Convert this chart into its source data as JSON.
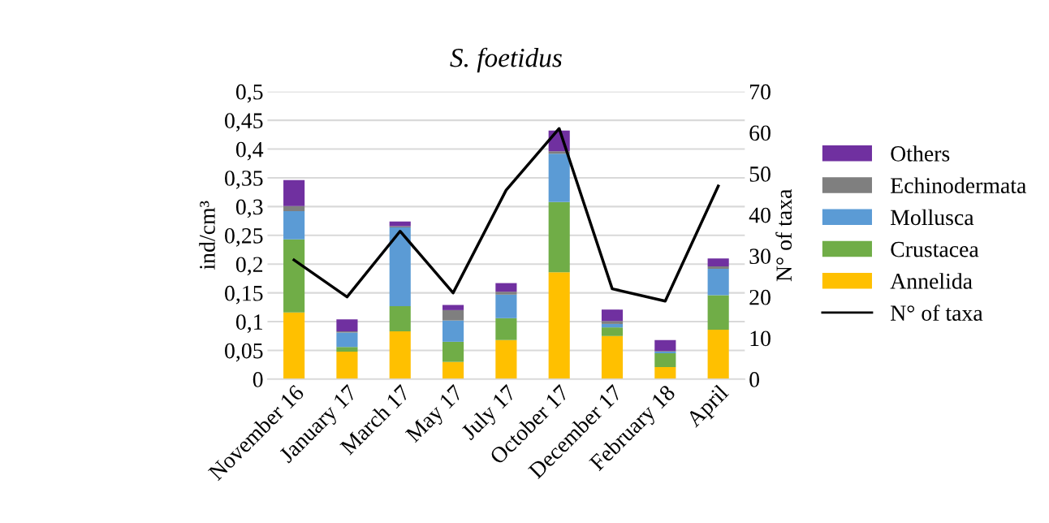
{
  "chart_data": {
    "type": "bar",
    "title": "S. foetidus",
    "ylabel": "ind/cm³",
    "y2label": "N° of taxa",
    "categories": [
      "November 16",
      "January 17",
      "March 17",
      "May 17",
      "July 17",
      "October 17",
      "December 17",
      "February 18",
      "April"
    ],
    "stacked": true,
    "grid": "y",
    "legend": "right",
    "ylim": [
      0,
      0.5
    ],
    "yticks": [
      {
        "value": 0,
        "label": "0"
      },
      {
        "value": 0.05,
        "label": "0,05"
      },
      {
        "value": 0.1,
        "label": "0,1"
      },
      {
        "value": 0.15,
        "label": "0,15"
      },
      {
        "value": 0.2,
        "label": "0,2"
      },
      {
        "value": 0.25,
        "label": "0,25"
      },
      {
        "value": 0.3,
        "label": "0,3"
      },
      {
        "value": 0.35,
        "label": "0,35"
      },
      {
        "value": 0.4,
        "label": "0,4"
      },
      {
        "value": 0.45,
        "label": "0,45"
      },
      {
        "value": 0.5,
        "label": "0,5"
      }
    ],
    "y2lim": [
      0,
      70
    ],
    "y2ticks": [
      0,
      10,
      20,
      30,
      40,
      50,
      60,
      70
    ],
    "series": [
      {
        "name": "Annelida",
        "color": "#ffc000",
        "values": [
          0.116,
          0.048,
          0.083,
          0.03,
          0.068,
          0.186,
          0.075,
          0.021,
          0.086
        ]
      },
      {
        "name": "Crustacea",
        "color": "#70ad47",
        "values": [
          0.127,
          0.008,
          0.044,
          0.035,
          0.038,
          0.122,
          0.015,
          0.024,
          0.06
        ]
      },
      {
        "name": "Mollusca",
        "color": "#5b9bd5",
        "values": [
          0.049,
          0.025,
          0.137,
          0.037,
          0.041,
          0.084,
          0.006,
          0.003,
          0.046
        ]
      },
      {
        "name": "Echinodermata",
        "color": "#7f7f7f",
        "values": [
          0.009,
          0.002,
          0.002,
          0.018,
          0.005,
          0.004,
          0.005,
          0.001,
          0.004
        ]
      },
      {
        "name": "Others",
        "color": "#7030a0",
        "values": [
          0.045,
          0.021,
          0.008,
          0.009,
          0.015,
          0.036,
          0.02,
          0.019,
          0.014
        ]
      },
      {
        "name": "N° of taxa",
        "type": "line",
        "axis": "y2",
        "color": "#000000",
        "values": [
          29,
          20,
          36,
          21,
          46,
          61,
          22,
          19,
          47
        ]
      }
    ]
  }
}
